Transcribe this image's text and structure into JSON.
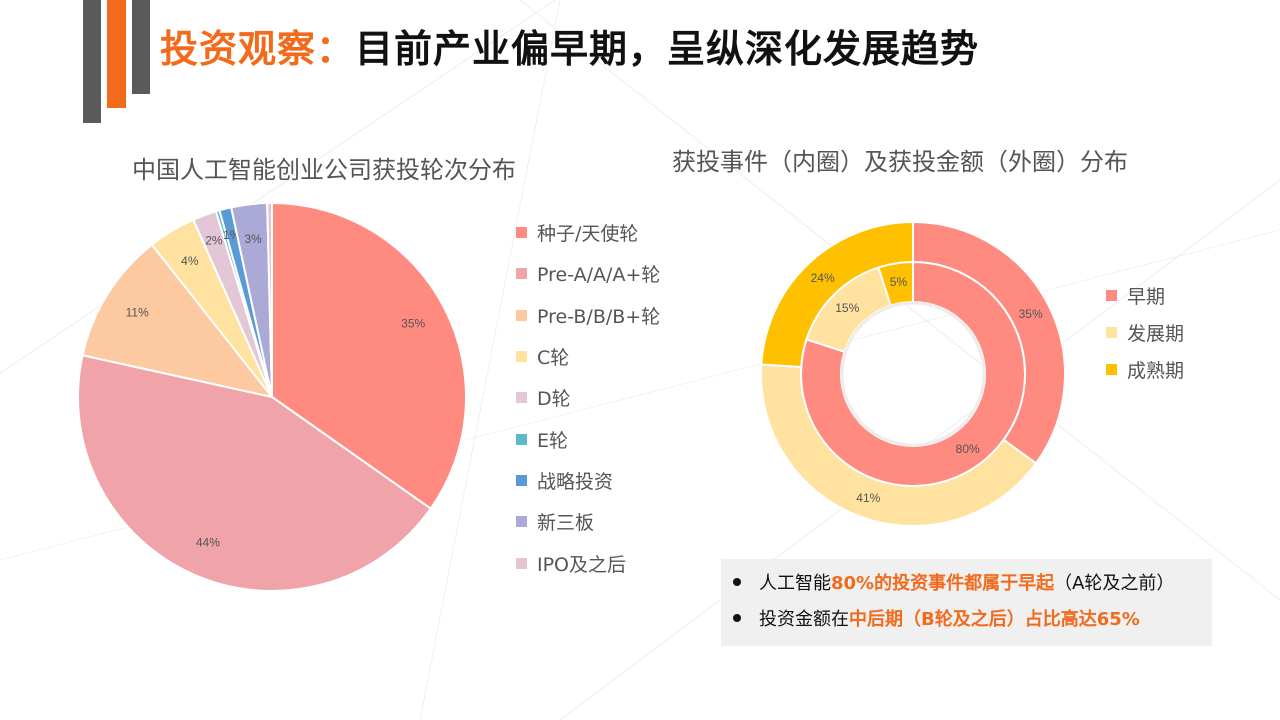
{
  "header": {
    "title_accent": "投资观察：",
    "title_main": "目前产业偏早期，呈纵深化发展趋势",
    "accent_color": "#F26B1D"
  },
  "chart_data": [
    {
      "type": "pie",
      "title": "中国人工智能创业公司获投轮次分布",
      "categories": [
        "种子/天使轮",
        "Pre-A/A/A+轮",
        "Pre-B/B/B+轮",
        "C轮",
        "D轮",
        "E轮",
        "战略投资",
        "新三板",
        "IPO及之后"
      ],
      "values": [
        35,
        44,
        11,
        4,
        2,
        0.3,
        1,
        3,
        0.4
      ],
      "data_labels": [
        "35%",
        "44%",
        "11%",
        "4%",
        "2%",
        "",
        "1%",
        "3%",
        ""
      ],
      "colors": [
        "#FF8A80",
        "#F0A3A8",
        "#FCC9A1",
        "#FFE1A0",
        "#E3C7D6",
        "#5FB8C6",
        "#5B9BD5",
        "#ABA9D6",
        "#E6C4D2"
      ],
      "legend": "right"
    },
    {
      "type": "pie",
      "title": "获投事件（内圈）及获投金额（外圈）分布",
      "categories": [
        "早期",
        "发展期",
        "成熟期"
      ],
      "series": [
        {
          "values": [
            80,
            15,
            5
          ],
          "data_labels": [
            "80%",
            "15%",
            "5%"
          ]
        },
        {
          "values": [
            35,
            41,
            24
          ],
          "data_labels": [
            "35%",
            "41%",
            "24%"
          ]
        }
      ],
      "colors": [
        "#FF8A80",
        "#FFE1A0",
        "#FFC000"
      ],
      "legend": "right"
    }
  ],
  "notes": {
    "line1_pre": "人工智能",
    "line1_hl": "80%的投资事件都属于早起",
    "line1_post": "（A轮及之前）",
    "line2_pre": "投资金额在",
    "line2_hl": "中后期（B轮及之后）占比高达65%"
  }
}
